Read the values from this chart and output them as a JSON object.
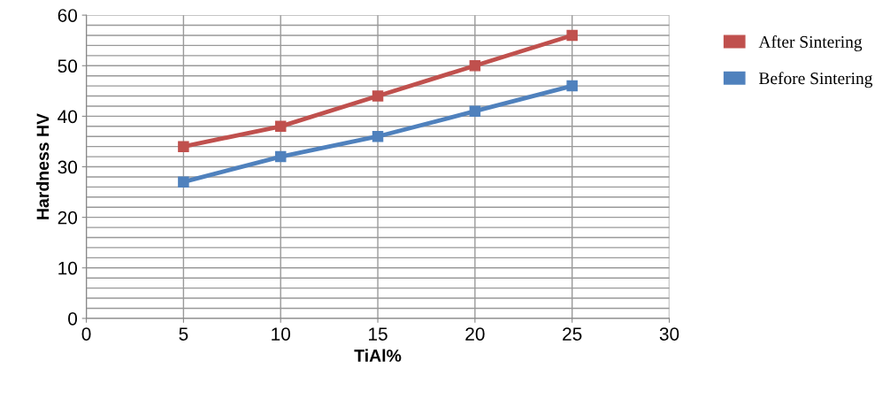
{
  "chart_data": {
    "type": "line",
    "xlabel": "TiAl%",
    "ylabel": "Hardness HV",
    "x": [
      5,
      10,
      15,
      20,
      25
    ],
    "series": [
      {
        "name": "After Sintering",
        "color": "#c0504d",
        "values": [
          34,
          38,
          44,
          50,
          56
        ]
      },
      {
        "name": "Before Sintering",
        "color": "#4f81bd",
        "values": [
          27,
          32,
          36,
          41,
          46
        ]
      }
    ],
    "xlim": [
      0,
      30
    ],
    "xticks": [
      0,
      5,
      10,
      15,
      20,
      25,
      30
    ],
    "ylim": [
      0,
      60
    ],
    "yticks": [
      0,
      {
        "value": 2,
        "label": null
      },
      {
        "value": 4,
        "label": null
      },
      {
        "value": 6,
        "label": null
      },
      {
        "value": 8,
        "label": null
      },
      10,
      {
        "value": 12,
        "label": null
      },
      {
        "value": 14,
        "label": null
      },
      {
        "value": 16,
        "label": null
      },
      {
        "value": 18,
        "label": null
      },
      20,
      {
        "value": 22,
        "label": null
      },
      {
        "value": 24,
        "label": null
      },
      {
        "value": 26,
        "label": null
      },
      {
        "value": 28,
        "label": null
      },
      30,
      {
        "value": 32,
        "label": null
      },
      {
        "value": 34,
        "label": null
      },
      {
        "value": 36,
        "label": null
      },
      {
        "value": 38,
        "label": null
      },
      40,
      {
        "value": 42,
        "label": null
      },
      {
        "value": 44,
        "label": null
      },
      {
        "value": 46,
        "label": null
      },
      {
        "value": 48,
        "label": null
      },
      50,
      {
        "value": 52,
        "label": null
      },
      {
        "value": 54,
        "label": null
      },
      {
        "value": 56,
        "label": null
      },
      {
        "value": 58,
        "label": null
      },
      60
    ],
    "grid": true,
    "legend": "top right",
    "marker": "square",
    "line_style": "solid"
  }
}
